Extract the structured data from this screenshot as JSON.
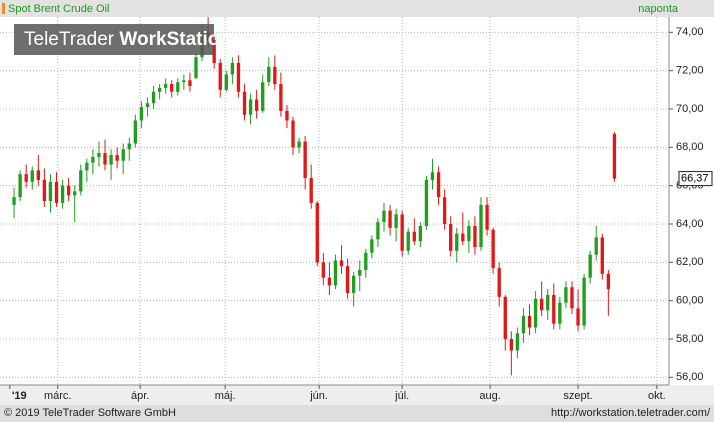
{
  "chart_data": {
    "type": "candlestick",
    "title": "Spot Brent Crude Oil",
    "interval": "naponta",
    "watermark": [
      "TeleTrader",
      "WorkStation"
    ],
    "footer_left": "© 2019 TeleTrader Software GmbH",
    "footer_right": "http://workstation.teletrader.com/",
    "up_color": "#1f9e1f",
    "down_color": "#e01818",
    "grid": true,
    "xlim": [
      -1,
      108
    ],
    "ylim": [
      55.6,
      74.8
    ],
    "xticks": [
      {
        "value": -0.7,
        "label": "'19"
      },
      {
        "value": 7.2,
        "label": "márc."
      },
      {
        "value": 20.8,
        "label": "ápr."
      },
      {
        "value": 34.8,
        "label": "máj."
      },
      {
        "value": 50.3,
        "label": "jún."
      },
      {
        "value": 64,
        "label": "júl."
      },
      {
        "value": 78.5,
        "label": "aug."
      },
      {
        "value": 93,
        "label": "szept."
      },
      {
        "value": 106,
        "label": "okt."
      }
    ],
    "yticks": [
      {
        "value": 56,
        "label": "56,00"
      },
      {
        "value": 58,
        "label": "58,00"
      },
      {
        "value": 60,
        "label": "60,00"
      },
      {
        "value": 62,
        "label": "62,00"
      },
      {
        "value": 64,
        "label": "64,00"
      },
      {
        "value": 66,
        "label": "66,00"
      },
      {
        "value": 68,
        "label": "68,00"
      },
      {
        "value": 70,
        "label": "70,00"
      },
      {
        "value": 72,
        "label": "72,00"
      },
      {
        "value": 74,
        "label": "74,00"
      }
    ],
    "last_price": {
      "value": 66.37,
      "label": "66,37"
    },
    "ohlc": [
      [
        65.0,
        65.9,
        64.3,
        65.4
      ],
      [
        65.4,
        66.8,
        65.2,
        66.6
      ],
      [
        66.6,
        67.1,
        65.9,
        66.2
      ],
      [
        66.2,
        67.0,
        65.8,
        66.8
      ],
      [
        66.8,
        67.6,
        66.0,
        66.3
      ],
      [
        66.3,
        66.9,
        64.9,
        65.2
      ],
      [
        65.2,
        66.6,
        64.6,
        66.2
      ],
      [
        66.2,
        66.7,
        64.9,
        65.1
      ],
      [
        65.1,
        66.3,
        64.8,
        66.0
      ],
      [
        66.0,
        66.4,
        65.2,
        65.5
      ],
      [
        65.5,
        66.0,
        64.1,
        65.7
      ],
      [
        65.7,
        67.1,
        65.5,
        66.8
      ],
      [
        66.8,
        67.4,
        66.2,
        67.2
      ],
      [
        67.2,
        67.9,
        66.6,
        67.5
      ],
      [
        67.5,
        68.3,
        67.0,
        67.7
      ],
      [
        67.7,
        68.4,
        66.8,
        67.1
      ],
      [
        67.1,
        67.9,
        66.3,
        67.6
      ],
      [
        67.6,
        68.0,
        66.9,
        67.3
      ],
      [
        67.3,
        68.2,
        66.6,
        67.9
      ],
      [
        67.9,
        68.5,
        67.3,
        68.2
      ],
      [
        68.2,
        69.7,
        68.0,
        69.4
      ],
      [
        69.4,
        70.4,
        69.0,
        70.1
      ],
      [
        70.1,
        70.6,
        69.6,
        70.3
      ],
      [
        70.3,
        71.2,
        70.0,
        70.9
      ],
      [
        70.9,
        71.3,
        70.5,
        71.1
      ],
      [
        71.1,
        71.6,
        70.8,
        71.3
      ],
      [
        71.3,
        71.5,
        70.6,
        70.9
      ],
      [
        70.9,
        71.6,
        70.7,
        71.4
      ],
      [
        71.4,
        71.8,
        71.0,
        71.5
      ],
      [
        71.5,
        71.9,
        70.9,
        71.2
      ],
      [
        71.6,
        72.9,
        71.6,
        72.7
      ],
      [
        72.7,
        74.4,
        72.5,
        74.0
      ],
      [
        74.0,
        74.8,
        73.2,
        73.6
      ],
      [
        73.6,
        73.9,
        72.1,
        72.4
      ],
      [
        72.4,
        72.6,
        70.6,
        71.0
      ],
      [
        71.0,
        72.0,
        70.9,
        71.8
      ],
      [
        71.8,
        72.7,
        71.3,
        72.4
      ],
      [
        72.4,
        72.8,
        70.6,
        70.9
      ],
      [
        70.9,
        71.3,
        69.4,
        69.7
      ],
      [
        69.7,
        70.8,
        69.2,
        70.5
      ],
      [
        70.5,
        71.0,
        69.5,
        69.9
      ],
      [
        69.9,
        71.8,
        69.8,
        71.4
      ],
      [
        71.4,
        72.7,
        71.2,
        72.2
      ],
      [
        72.2,
        72.8,
        71.0,
        71.3
      ],
      [
        71.3,
        71.9,
        69.6,
        69.9
      ],
      [
        69.9,
        70.2,
        69.0,
        69.4
      ],
      [
        69.4,
        69.6,
        67.6,
        68.0
      ],
      [
        68.0,
        68.5,
        67.7,
        68.3
      ],
      [
        68.3,
        68.6,
        65.8,
        66.4
      ],
      [
        66.4,
        67.1,
        64.8,
        65.1
      ],
      [
        65.1,
        65.2,
        61.8,
        62.0
      ],
      [
        62.0,
        62.5,
        60.8,
        61.2
      ],
      [
        61.2,
        62.0,
        60.3,
        60.8
      ],
      [
        60.8,
        62.4,
        60.6,
        62.1
      ],
      [
        62.1,
        62.9,
        61.4,
        61.8
      ],
      [
        61.8,
        62.2,
        60.1,
        60.4
      ],
      [
        60.4,
        61.5,
        59.7,
        61.3
      ],
      [
        61.3,
        62.1,
        60.5,
        61.6
      ],
      [
        61.6,
        62.7,
        61.2,
        62.5
      ],
      [
        62.5,
        63.4,
        62.2,
        63.2
      ],
      [
        63.2,
        64.3,
        62.8,
        64.1
      ],
      [
        64.1,
        65.1,
        63.6,
        64.7
      ],
      [
        64.7,
        65.0,
        63.4,
        63.8
      ],
      [
        63.8,
        64.8,
        63.1,
        64.5
      ],
      [
        64.5,
        64.7,
        62.3,
        62.6
      ],
      [
        62.6,
        63.8,
        62.4,
        63.6
      ],
      [
        63.6,
        64.3,
        62.9,
        63.1
      ],
      [
        63.1,
        64.1,
        62.8,
        63.9
      ],
      [
        63.9,
        66.5,
        63.7,
        66.3
      ],
      [
        66.3,
        67.4,
        65.8,
        66.7
      ],
      [
        66.7,
        67.0,
        65.0,
        65.4
      ],
      [
        65.4,
        65.8,
        63.7,
        64.0
      ],
      [
        64.0,
        64.4,
        62.3,
        62.6
      ],
      [
        62.6,
        63.8,
        62.0,
        63.5
      ],
      [
        63.5,
        64.6,
        62.9,
        63.1
      ],
      [
        63.1,
        64.2,
        62.5,
        63.9
      ],
      [
        63.9,
        64.4,
        62.4,
        62.8
      ],
      [
        62.8,
        65.4,
        62.6,
        65.0
      ],
      [
        65.0,
        65.4,
        63.4,
        63.7
      ],
      [
        63.7,
        63.8,
        61.4,
        61.7
      ],
      [
        61.7,
        62.0,
        59.7,
        60.2
      ],
      [
        60.2,
        60.3,
        57.4,
        58.0
      ],
      [
        58.0,
        58.4,
        56.1,
        57.4
      ],
      [
        57.4,
        58.6,
        57.0,
        58.3
      ],
      [
        58.3,
        59.6,
        57.8,
        59.2
      ],
      [
        59.2,
        59.8,
        58.2,
        58.6
      ],
      [
        58.6,
        60.5,
        58.3,
        60.1
      ],
      [
        60.1,
        61.0,
        59.2,
        59.5
      ],
      [
        59.5,
        60.6,
        59.0,
        60.3
      ],
      [
        60.3,
        60.9,
        58.5,
        58.8
      ],
      [
        58.8,
        60.2,
        58.5,
        59.9
      ],
      [
        59.9,
        61.0,
        59.6,
        60.7
      ],
      [
        60.7,
        61.0,
        59.3,
        59.6
      ],
      [
        59.6,
        60.6,
        58.4,
        58.7
      ],
      [
        58.7,
        61.4,
        58.5,
        61.2
      ],
      [
        61.2,
        62.6,
        60.9,
        62.4
      ],
      [
        62.4,
        63.9,
        62.1,
        63.3
      ],
      [
        63.3,
        63.5,
        61.1,
        61.4
      ],
      [
        61.4,
        61.6,
        59.2,
        60.6
      ],
      [
        68.7,
        68.8,
        66.2,
        66.37
      ]
    ]
  }
}
